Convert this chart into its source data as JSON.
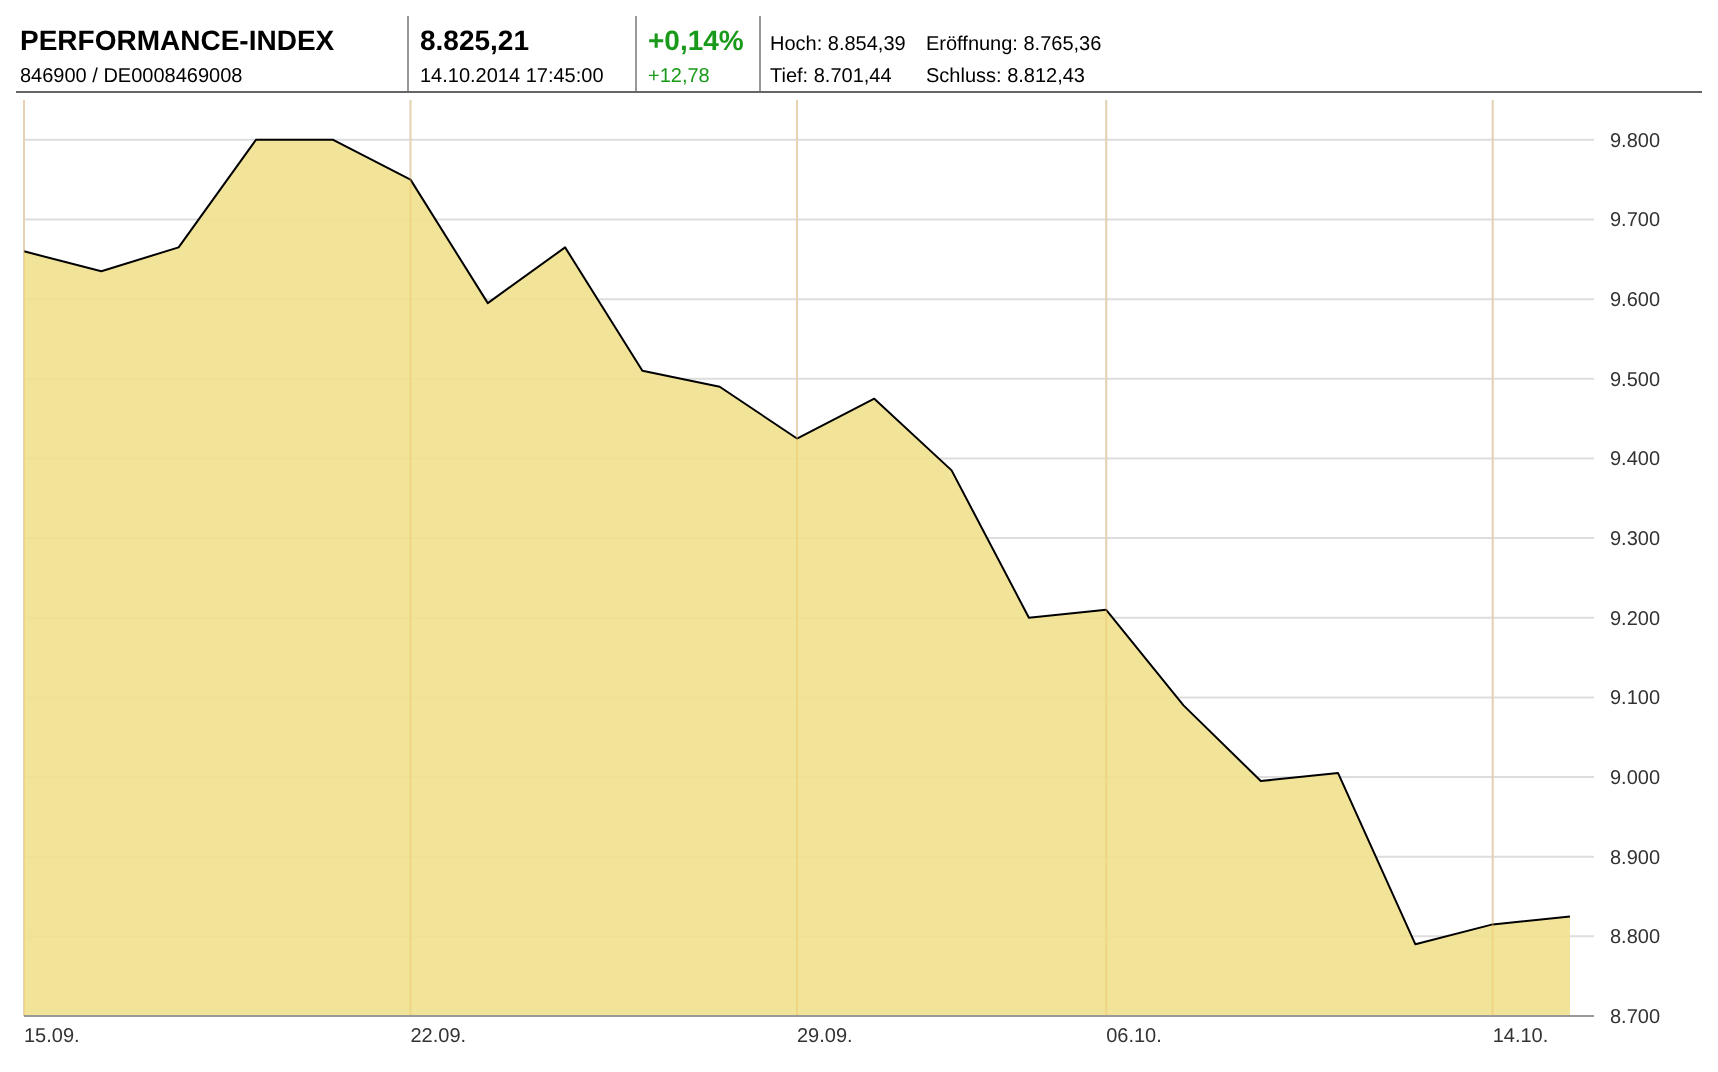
{
  "chart_data": {
    "type": "area",
    "title": "PERFORMANCE-INDEX",
    "subtitle": "846900 / DE0008469008",
    "annotations": [
      "8.825,21",
      "14.10.2014 17:45:00",
      "+0,14%",
      "+12,78",
      "Hoch: 8.854,39",
      "Tief: 8.701,44",
      "Eröffnung: 8.765,36",
      "Schluss: 8.812,43"
    ],
    "categories": [
      "15.09.",
      null,
      null,
      null,
      null,
      "22.09.",
      null,
      null,
      null,
      null,
      "29.09.",
      null,
      null,
      null,
      "06.10.",
      null,
      null,
      null,
      null,
      "14.10.",
      null
    ],
    "series": [
      {
        "color": "#f0e08c",
        "values": [
          9660,
          9635,
          9665,
          9800,
          9800,
          9750,
          9595,
          9665,
          9510,
          9490,
          9425,
          9475,
          9385,
          9200,
          9210,
          9090,
          8995,
          9005,
          8790,
          8815,
          8825
        ]
      }
    ],
    "ylim": [
      8700,
      9850
    ],
    "yticks": [
      {
        "value": 8700,
        "label": "8.700"
      },
      {
        "value": 8800,
        "label": "8.800"
      },
      {
        "value": 8900,
        "label": "8.900"
      },
      {
        "value": 9000,
        "label": "9.000"
      },
      {
        "value": 9100,
        "label": "9.100"
      },
      {
        "value": 9200,
        "label": "9.200"
      },
      {
        "value": 9300,
        "label": "9.300"
      },
      {
        "value": 9400,
        "label": "9.400"
      },
      {
        "value": 9500,
        "label": "9.500"
      },
      {
        "value": 9600,
        "label": "9.600"
      },
      {
        "value": 9700,
        "label": "9.700"
      },
      {
        "value": 9800,
        "label": "9.800"
      }
    ],
    "grid": true
  }
}
